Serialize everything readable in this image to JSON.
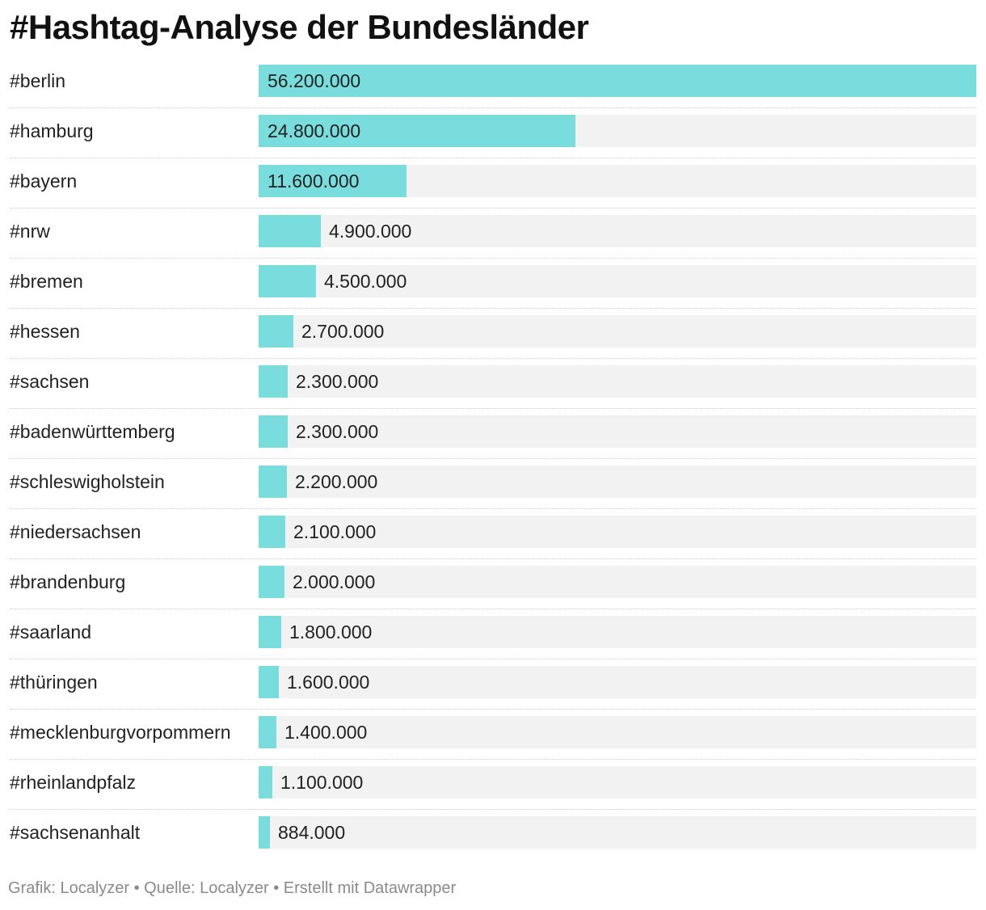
{
  "chart_data": {
    "type": "bar",
    "orientation": "horizontal",
    "title": "#Hashtag-Analyse der Bundesländer",
    "xlabel": "",
    "ylabel": "",
    "xlim": [
      0,
      56200000
    ],
    "categories": [
      "#berlin",
      "#hamburg",
      "#bayern",
      "#nrw",
      "#bremen",
      "#hessen",
      "#sachsen",
      "#badenwürttemberg",
      "#schleswigholstein",
      "#niedersachsen",
      "#brandenburg",
      "#saarland",
      "#thüringen",
      "#mecklenburgvorpommern",
      "#rheinlandpfalz",
      "#sachsenanhalt"
    ],
    "values": [
      56200000,
      24800000,
      11600000,
      4900000,
      4500000,
      2700000,
      2300000,
      2300000,
      2200000,
      2100000,
      2000000,
      1800000,
      1600000,
      1400000,
      1100000,
      884000
    ],
    "value_labels": [
      "56.200.000",
      "24.800.000",
      "11.600.000",
      "4.900.000",
      "4.500.000",
      "2.700.000",
      "2.300.000",
      "2.300.000",
      "2.200.000",
      "2.100.000",
      "2.000.000",
      "1.800.000",
      "1.600.000",
      "1.400.000",
      "1.100.000",
      "884.000"
    ],
    "bar_color": "#7adddd",
    "track_color": "#f2f2f2"
  },
  "footer": {
    "text": "Grafik: Localyzer • Quelle: Localyzer • Erstellt mit Datawrapper"
  }
}
